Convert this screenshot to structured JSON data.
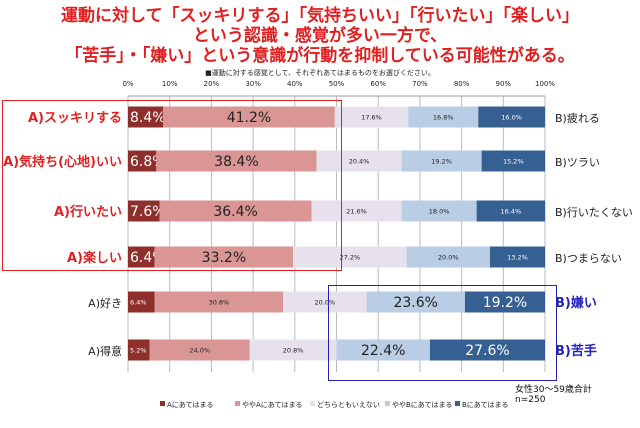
{
  "title_lines": [
    "運動に対して「スッキリする」「気持ちいい」「行いたい」「楽しい」",
    "という認識・感覚が多い一方で、",
    "「苦手」・「嫌い」という意識が行動を抑制している可能性がある。"
  ],
  "question": "■運動に対する感覚として、それぞれあてはまるものをお選びください。",
  "note_line1": "女性30～59歳合計",
  "note_line2": "n=250",
  "chart_data": {
    "type": "bar",
    "stacked": true,
    "orientation": "horizontal",
    "xlim": [
      0,
      100
    ],
    "x_ticks": [
      "0%",
      "10%",
      "20%",
      "30%",
      "40%",
      "50%",
      "60%",
      "70%",
      "80%",
      "90%",
      "100%"
    ],
    "grid": true,
    "legend_position": "bottom",
    "categories_left": [
      "A)スッキリする",
      "A)気持ち(心地)いい",
      "A)行いたい",
      "A)楽しい",
      "A)好き",
      "A)得意"
    ],
    "categories_right": [
      "B)疲れる",
      "B)ツラい",
      "B)行いたくない",
      "B)つまらない",
      "B)嫌い",
      "B)苦手"
    ],
    "series": [
      {
        "name": "Aにあてはまる",
        "color": "#8e2f2c",
        "values": [
          8.4,
          6.8,
          7.6,
          6.4,
          6.4,
          5.2
        ]
      },
      {
        "name": "ややAにあてはまる",
        "color": "#d99694",
        "values": [
          41.2,
          38.4,
          36.4,
          33.2,
          30.8,
          24.0
        ]
      },
      {
        "name": "どちらともいえない",
        "color": "#e7e1ed",
        "values": [
          17.6,
          20.4,
          21.6,
          27.2,
          20.0,
          20.8
        ]
      },
      {
        "name": "ややBにあてはまる",
        "color": "#b9cde5",
        "values": [
          16.8,
          19.2,
          18.0,
          20.0,
          23.6,
          22.4
        ]
      },
      {
        "name": "Bにあてはまる",
        "color": "#376092",
        "values": [
          16.0,
          15.2,
          16.4,
          13.2,
          19.2,
          27.6
        ]
      }
    ],
    "highlight_colors": {
      "a_box": "#e02020",
      "b_box": "#2222bb"
    }
  }
}
